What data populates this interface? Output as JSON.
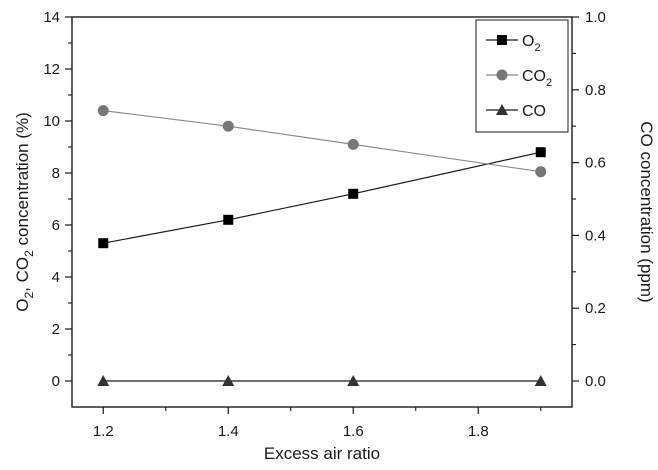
{
  "chart_data": {
    "type": "line",
    "x": [
      1.2,
      1.4,
      1.6,
      1.9
    ],
    "xlabel": "Excess air ratio",
    "ylabel_left": "O2, CO2 concentration (%)",
    "ylabel_right": "CO concentration  (ppm)",
    "xlim": [
      1.15,
      1.95
    ],
    "ylim_left": [
      -1,
      14
    ],
    "ylim_right": [
      -0.0714,
      1.0
    ],
    "x_ticks": [
      "1.2",
      "1.4",
      "1.6",
      "1.8"
    ],
    "y_left_ticks": [
      "0",
      "2",
      "4",
      "6",
      "8",
      "10",
      "12",
      "14"
    ],
    "y_right_ticks": [
      "0.0",
      "0.2",
      "0.4",
      "0.6",
      "0.8",
      "1.0"
    ],
    "grid": false,
    "legend_position": "top-right",
    "series": [
      {
        "name": "O2",
        "axis": "left",
        "marker": "square",
        "color": "#000000",
        "line_color": "#1a1a1a",
        "values": [
          5.3,
          6.2,
          7.2,
          8.8
        ]
      },
      {
        "name": "CO2",
        "axis": "left",
        "marker": "circle",
        "color": "#777777",
        "line_color": "#8a8a8a",
        "values": [
          10.4,
          9.8,
          9.1,
          8.05
        ]
      },
      {
        "name": "CO",
        "axis": "right",
        "marker": "triangle",
        "color": "#333333",
        "line_color": "#1a1a1a",
        "values": [
          0.0,
          0.0,
          0.0,
          0.0
        ]
      }
    ],
    "legend": [
      {
        "base": "O",
        "sub": "2"
      },
      {
        "base": "CO",
        "sub": "2"
      },
      {
        "base": "CO",
        "sub": ""
      }
    ]
  }
}
